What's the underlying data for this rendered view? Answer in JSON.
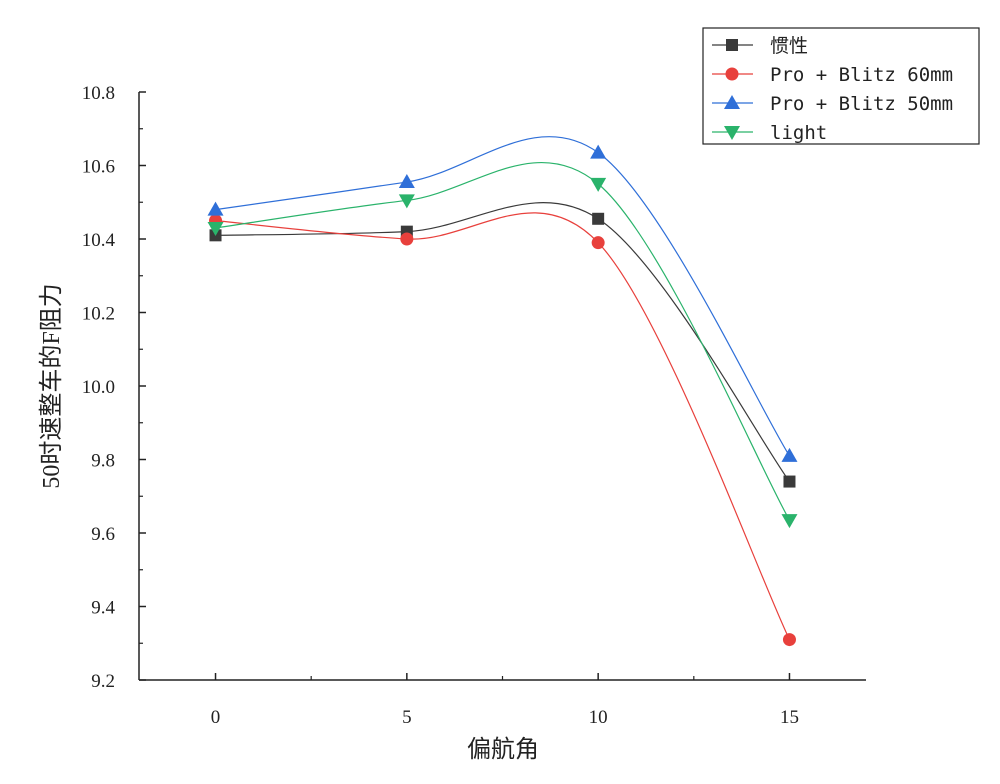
{
  "chart_data": {
    "type": "line",
    "title": "",
    "xlabel": "偏航角",
    "ylabel": "50时速整车的F阻力",
    "x": [
      0,
      5,
      10,
      15
    ],
    "xlim": [
      -2,
      17
    ],
    "ylim": [
      9.2,
      10.8
    ],
    "x_ticks": [
      "0",
      "5",
      "10",
      "15"
    ],
    "y_ticks": [
      "9.2",
      "9.4",
      "9.6",
      "9.8",
      "10.0",
      "10.2",
      "10.4",
      "10.6",
      "10.8"
    ],
    "grid": false,
    "smooth": true,
    "legend_position": "top-right",
    "series": [
      {
        "name": "惯性",
        "values": [
          10.41,
          10.42,
          10.455,
          9.74
        ],
        "color": "#3a3a3a",
        "marker": "square"
      },
      {
        "name": "Pro + Blitz 60mm",
        "values": [
          10.45,
          10.4,
          10.39,
          9.31
        ],
        "color": "#e8403c",
        "marker": "circle"
      },
      {
        "name": "Pro + Blitz 50mm",
        "values": [
          10.48,
          10.555,
          10.635,
          9.81
        ],
        "color": "#2f6fd8",
        "marker": "triangle-up"
      },
      {
        "name": "light",
        "values": [
          10.43,
          10.505,
          10.55,
          9.635
        ],
        "color": "#2ab36b",
        "marker": "triangle-down"
      }
    ]
  }
}
